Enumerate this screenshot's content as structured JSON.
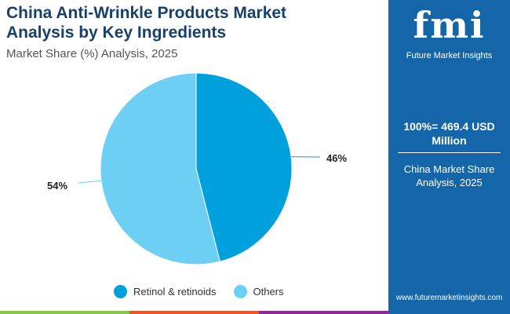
{
  "header": {
    "title": "China Anti-Wrinkle Products Market Analysis by Key Ingredients",
    "subtitle": "Market Share (%) Analysis, 2025"
  },
  "chart_data": {
    "type": "pie",
    "title": "China Anti-Wrinkle Products Market Analysis by Key Ingredients",
    "subtitle": "Market Share (%) Analysis, 2025",
    "slices": [
      {
        "label": "Retinol & retinoids",
        "value": 46,
        "display": "46%",
        "color": "#00a0dc"
      },
      {
        "label": "Others",
        "value": 54,
        "display": "54%",
        "color": "#6ecff4"
      }
    ],
    "legend_position": "bottom"
  },
  "panel": {
    "logo": "fmi",
    "brand": "Future Market Insights",
    "total": "100%= 469.4 USD Million",
    "share_label": "China Market Share Analysis, 2025",
    "url": "www.futuremarketinsights.com"
  }
}
